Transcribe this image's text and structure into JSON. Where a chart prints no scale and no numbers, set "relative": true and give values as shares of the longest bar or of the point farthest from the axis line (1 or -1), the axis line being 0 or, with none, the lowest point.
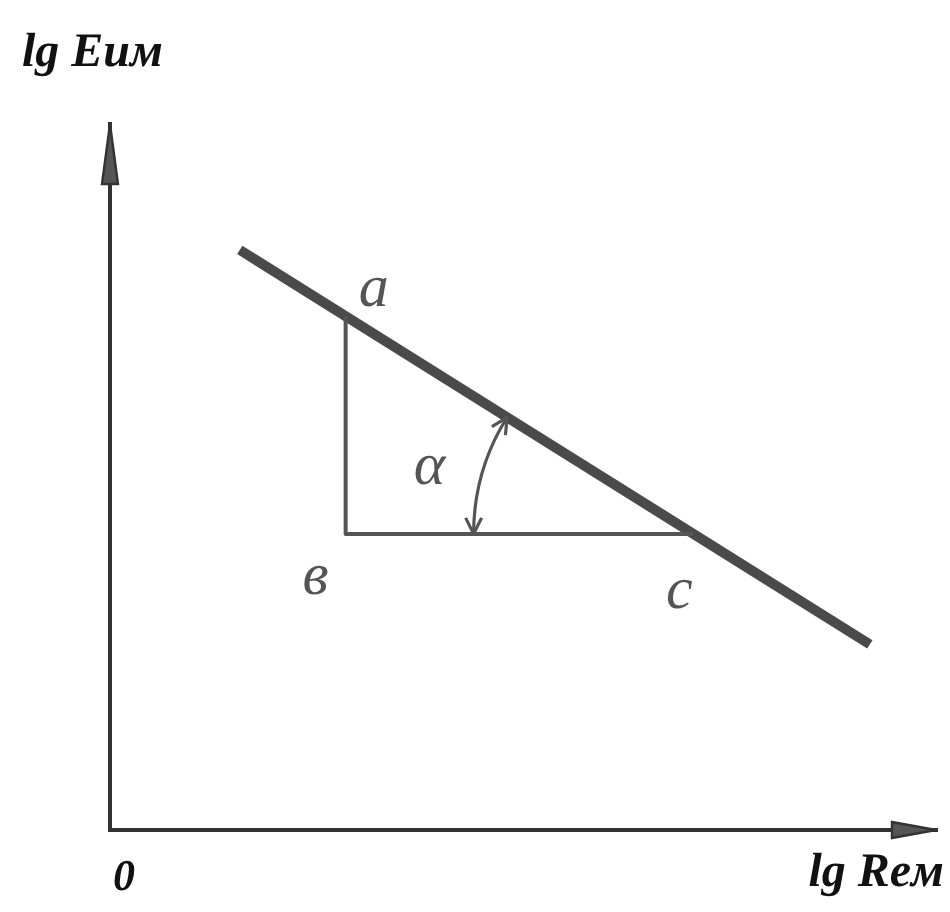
{
  "chart_data": {
    "type": "line",
    "xlabel": "lg Reм",
    "ylabel": "lg Euм",
    "categories": [
      null,
      null
    ],
    "series": [
      {
        "color": "#4a4a4a",
        "values": [
          1,
          0.32
        ]
      }
    ],
    "relative": true,
    "marker": "none",
    "annotations": [
      "а",
      "в",
      "с",
      "α",
      "0"
    ]
  }
}
